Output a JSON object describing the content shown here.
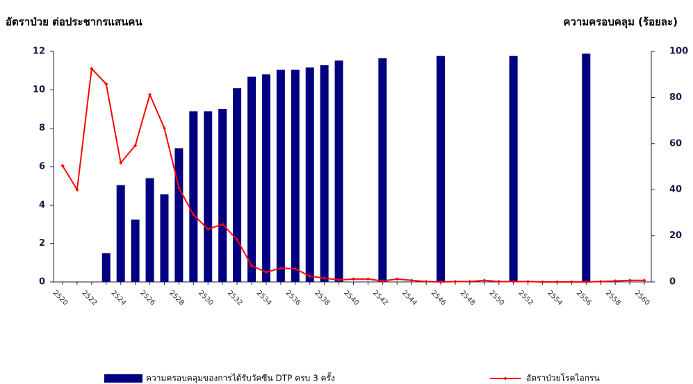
{
  "chart_data": {
    "type": "bar-line",
    "y_axis_title": "อัตราป่วย ต่อประชากรแสนคน",
    "y2_axis_title": "ความครอบคลุม (ร้อยละ)",
    "categories": [
      "2520",
      null,
      "2522",
      null,
      "2524",
      null,
      "2526",
      null,
      "2528",
      null,
      "2530",
      null,
      "2532",
      null,
      "2534",
      null,
      "2536",
      null,
      "2538",
      null,
      "2540",
      null,
      "2542",
      null,
      "2544",
      null,
      "2546",
      null,
      "2548",
      null,
      "2550",
      null,
      "2552",
      null,
      "2554",
      null,
      "2556",
      null,
      "2558",
      null,
      "2560"
    ],
    "series": [
      {
        "name": "ความครอบคลุมของการได้รับวัคซีน DTP ครบ 3 ครั้ง",
        "type": "bar",
        "axis": "y2",
        "color": "#000080",
        "values": [
          null,
          null,
          null,
          12.5,
          42,
          27,
          45,
          38,
          58,
          74,
          74,
          75,
          84,
          89,
          90,
          92,
          92,
          93,
          94,
          96,
          null,
          null,
          97,
          null,
          null,
          null,
          98,
          null,
          null,
          null,
          null,
          98,
          null,
          null,
          null,
          null,
          99,
          null,
          null,
          null,
          null
        ]
      },
      {
        "name": "อัตราป่วยโรคไอกรน",
        "type": "line",
        "axis": "y",
        "color": "#ff0000",
        "values": [
          6.05,
          4.8,
          11.1,
          10.3,
          6.2,
          7.1,
          9.75,
          8.0,
          4.9,
          3.5,
          2.75,
          3.0,
          2.2,
          0.85,
          0.5,
          0.72,
          0.68,
          0.3,
          0.2,
          0.1,
          0.15,
          0.15,
          0.05,
          0.15,
          0.08,
          0.02,
          0,
          0.02,
          0.02,
          0.08,
          0.02,
          0.02,
          0.02,
          0,
          0,
          0,
          0,
          0.02,
          0.05,
          0.08,
          0.08
        ]
      }
    ],
    "ylim": [
      0,
      12
    ],
    "yticks": [
      0,
      2,
      4,
      6,
      8,
      10,
      12
    ],
    "y2lim": [
      0,
      100
    ],
    "y2ticks": [
      0,
      20,
      40,
      60,
      80,
      100
    ],
    "legend": "bottom"
  }
}
